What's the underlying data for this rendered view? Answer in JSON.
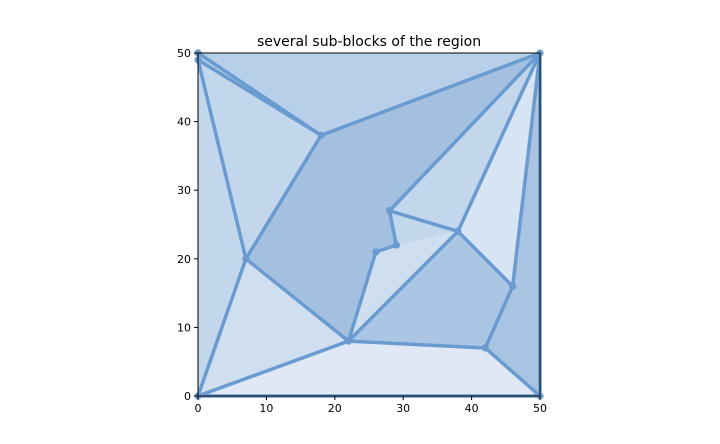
{
  "chart_data": {
    "type": "polygon-map",
    "title": "several sub-blocks of the region",
    "xlabel": "",
    "ylabel": "",
    "xlim": [
      0,
      50
    ],
    "ylim": [
      0,
      50
    ],
    "xticks": [
      0,
      10,
      20,
      30,
      40,
      50
    ],
    "yticks": [
      0,
      10,
      20,
      30,
      40,
      50
    ],
    "grid": false,
    "line_color": "#6a9bd0",
    "points": [
      {
        "id": "p0",
        "x": 0,
        "y": 0
      },
      {
        "id": "p1",
        "x": 50,
        "y": 0
      },
      {
        "id": "p2",
        "x": 50,
        "y": 50
      },
      {
        "id": "p3",
        "x": 0,
        "y": 50
      },
      {
        "id": "p4",
        "x": 0,
        "y": 49
      },
      {
        "id": "p5",
        "x": 18,
        "y": 38
      },
      {
        "id": "p6",
        "x": 7,
        "y": 20
      },
      {
        "id": "p7",
        "x": 22,
        "y": 8
      },
      {
        "id": "p8",
        "x": 42,
        "y": 7
      },
      {
        "id": "p9",
        "x": 46,
        "y": 16
      },
      {
        "id": "p10",
        "x": 38,
        "y": 24
      },
      {
        "id": "p11",
        "x": 28,
        "y": 27
      },
      {
        "id": "p12",
        "x": 29,
        "y": 22
      },
      {
        "id": "p13",
        "x": 26,
        "y": 21
      }
    ],
    "regions": [
      {
        "points": [
          [
            0,
            50
          ],
          [
            50,
            50
          ],
          [
            18,
            38
          ],
          [
            0,
            49
          ]
        ],
        "color": "#b7cfe8"
      },
      {
        "points": [
          [
            0,
            49
          ],
          [
            18,
            38
          ],
          [
            7,
            20
          ],
          [
            0,
            0
          ]
        ],
        "color": "#c2d6ec"
      },
      {
        "points": [
          [
            0,
            50
          ],
          [
            0,
            49
          ],
          [
            0,
            0
          ]
        ],
        "color": "#a6c3e2"
      },
      {
        "points": [
          [
            0,
            0
          ],
          [
            7,
            20
          ],
          [
            22,
            8
          ]
        ],
        "color": "#d0dff0"
      },
      {
        "points": [
          [
            18,
            38
          ],
          [
            50,
            50
          ],
          [
            28,
            27
          ]
        ],
        "color": "#a3c0e1"
      },
      {
        "points": [
          [
            7,
            20
          ],
          [
            18,
            38
          ],
          [
            28,
            27
          ],
          [
            29,
            22
          ],
          [
            26,
            21
          ],
          [
            22,
            8
          ]
        ],
        "color": "#a3c0e1"
      },
      {
        "points": [
          [
            28,
            27
          ],
          [
            50,
            50
          ],
          [
            38,
            24
          ],
          [
            29,
            22
          ]
        ],
        "color": "#c2d6ec"
      },
      {
        "points": [
          [
            29,
            22
          ],
          [
            38,
            24
          ],
          [
            22,
            8
          ],
          [
            26,
            21
          ]
        ],
        "color": "#d0dff0"
      },
      {
        "points": [
          [
            38,
            24
          ],
          [
            50,
            50
          ],
          [
            46,
            16
          ]
        ],
        "color": "#d7e4f3"
      },
      {
        "points": [
          [
            22,
            8
          ],
          [
            38,
            24
          ],
          [
            46,
            16
          ],
          [
            42,
            7
          ]
        ],
        "color": "#abc6e4"
      },
      {
        "points": [
          [
            46,
            16
          ],
          [
            50,
            50
          ],
          [
            50,
            0
          ],
          [
            42,
            7
          ]
        ],
        "color": "#a9c4e3"
      },
      {
        "points": [
          [
            0,
            0
          ],
          [
            22,
            8
          ],
          [
            42,
            7
          ],
          [
            50,
            0
          ]
        ],
        "color": "#dfe8f4"
      }
    ],
    "edges": [
      [
        [
          0,
          50
        ],
        [
          18,
          38
        ]
      ],
      [
        [
          0,
          49
        ],
        [
          18,
          38
        ]
      ],
      [
        [
          0,
          49
        ],
        [
          7,
          20
        ]
      ],
      [
        [
          18,
          38
        ],
        [
          50,
          50
        ]
      ],
      [
        [
          18,
          38
        ],
        [
          7,
          20
        ]
      ],
      [
        [
          7,
          20
        ],
        [
          0,
          0
        ]
      ],
      [
        [
          7,
          20
        ],
        [
          22,
          8
        ]
      ],
      [
        [
          0,
          0
        ],
        [
          22,
          8
        ]
      ],
      [
        [
          0,
          0
        ],
        [
          50,
          0
        ]
      ],
      [
        [
          22,
          8
        ],
        [
          42,
          7
        ]
      ],
      [
        [
          42,
          7
        ],
        [
          50,
          0
        ]
      ],
      [
        [
          42,
          7
        ],
        [
          46,
          16
        ]
      ],
      [
        [
          46,
          16
        ],
        [
          50,
          50
        ]
      ],
      [
        [
          46,
          16
        ],
        [
          38,
          24
        ]
      ],
      [
        [
          38,
          24
        ],
        [
          22,
          8
        ]
      ],
      [
        [
          38,
          24
        ],
        [
          28,
          27
        ]
      ],
      [
        [
          38,
          24
        ],
        [
          50,
          50
        ]
      ],
      [
        [
          28,
          27
        ],
        [
          50,
          50
        ]
      ],
      [
        [
          28,
          27
        ],
        [
          29,
          22
        ]
      ],
      [
        [
          29,
          22
        ],
        [
          26,
          21
        ]
      ],
      [
        [
          26,
          21
        ],
        [
          22,
          8
        ]
      ],
      [
        [
          50,
          50
        ],
        [
          50,
          0
        ]
      ]
    ]
  }
}
